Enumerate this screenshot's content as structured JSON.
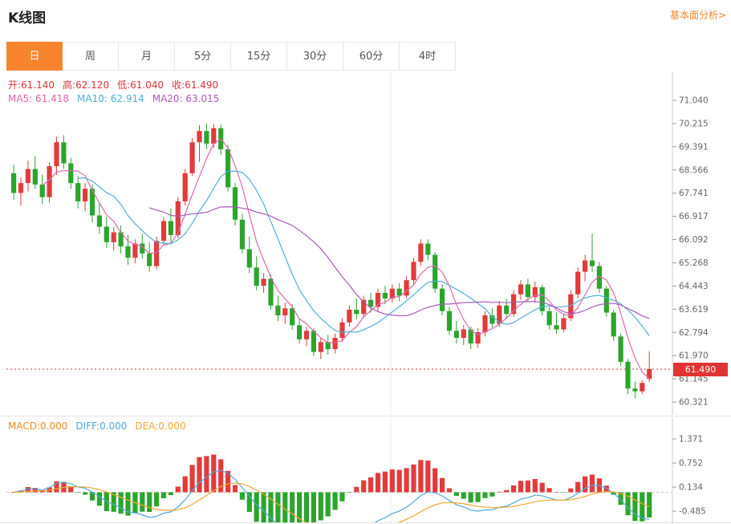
{
  "header": {
    "title": "K线图",
    "link_label": "基本面分析>"
  },
  "tabs": [
    {
      "name": "tab-day",
      "label": "日",
      "active": true
    },
    {
      "name": "tab-week",
      "label": "周",
      "active": false
    },
    {
      "name": "tab-month",
      "label": "月",
      "active": false
    },
    {
      "name": "tab-5min",
      "label": "5分",
      "active": false
    },
    {
      "name": "tab-15min",
      "label": "15分",
      "active": false
    },
    {
      "name": "tab-30min",
      "label": "30分",
      "active": false
    },
    {
      "name": "tab-60min",
      "label": "60分",
      "active": false
    },
    {
      "name": "tab-4hour",
      "label": "4时",
      "active": false
    }
  ],
  "ohlc_legend": [
    {
      "name": "legend-open",
      "label": "开:",
      "value": "61.140",
      "color": "#e03434"
    },
    {
      "name": "legend-high",
      "label": "高:",
      "value": "62.120",
      "color": "#e03434"
    },
    {
      "name": "legend-low",
      "label": "低:",
      "value": "61.040",
      "color": "#e03434"
    },
    {
      "name": "legend-close",
      "label": "收:",
      "value": "61.490",
      "color": "#e03434"
    }
  ],
  "ma_legend": [
    {
      "name": "legend-ma5",
      "label": "MA5: ",
      "value": "61.418",
      "color": "#e066b2"
    },
    {
      "name": "legend-ma10",
      "label": "MA10: ",
      "value": "62.914",
      "color": "#4fb0d8"
    },
    {
      "name": "legend-ma20",
      "label": "MA20: ",
      "value": "63.015",
      "color": "#a85cb8"
    }
  ],
  "macd_legend": [
    {
      "name": "legend-macd",
      "label": "MACD:",
      "value": "0.000",
      "color": "#f08c2e"
    },
    {
      "name": "legend-diff",
      "label": "DIFF:",
      "value": "0.000",
      "color": "#4fa8d8"
    },
    {
      "name": "legend-dea",
      "label": "DEA:",
      "value": "0.000",
      "color": "#f0a830"
    }
  ],
  "price_tag": {
    "value": "61.490",
    "bg": "#e03434"
  },
  "chart_data": {
    "type": "candlestick",
    "title": "K线图",
    "period": "日",
    "ohlc_current": {
      "open": 61.14,
      "high": 62.12,
      "low": 61.04,
      "close": 61.49
    },
    "ma_values": {
      "ma5": 61.418,
      "ma10": 62.914,
      "ma20": 63.015
    },
    "macd_display": {
      "macd": 0.0,
      "diff": 0.0,
      "dea": 0.0
    },
    "current_price": 61.49,
    "y_axis_labels": [
      "71.040",
      "70.215",
      "69.391",
      "68.566",
      "67.741",
      "66.917",
      "66.092",
      "65.268",
      "64.443",
      "63.619",
      "62.794",
      "61.970",
      "61.145",
      "60.321"
    ],
    "macd_axis_labels": [
      "1.371",
      "0.752",
      "0.134",
      "-0.485"
    ],
    "colors": {
      "up": "#e23b3b",
      "down": "#2ba52e",
      "ma5": "#e066b2",
      "ma10": "#4fb0d8",
      "ma20": "#a85cb8",
      "diff": "#4fa8d8",
      "dea": "#f0a830",
      "price_line": "#e03434",
      "axis": "#cccccc",
      "grid": "#ededed"
    },
    "candles": [
      [
        68.45,
        68.75,
        67.5,
        67.75
      ],
      [
        67.75,
        68.3,
        67.3,
        68.1
      ],
      [
        68.1,
        68.9,
        67.8,
        68.6
      ],
      [
        68.6,
        69.05,
        67.9,
        68.05
      ],
      [
        68.05,
        68.4,
        67.35,
        67.6
      ],
      [
        67.6,
        68.85,
        67.4,
        68.7
      ],
      [
        68.7,
        69.75,
        68.4,
        69.55
      ],
      [
        69.55,
        69.8,
        68.6,
        68.8
      ],
      [
        68.8,
        69.0,
        67.9,
        68.1
      ],
      [
        68.1,
        68.35,
        67.2,
        67.45
      ],
      [
        67.45,
        68.1,
        67.1,
        67.9
      ],
      [
        67.9,
        68.05,
        66.7,
        66.95
      ],
      [
        66.95,
        67.4,
        66.3,
        66.55
      ],
      [
        66.55,
        66.9,
        65.8,
        66.0
      ],
      [
        66.0,
        66.55,
        65.7,
        66.35
      ],
      [
        66.35,
        66.6,
        65.6,
        65.85
      ],
      [
        65.85,
        66.25,
        65.2,
        65.45
      ],
      [
        65.45,
        66.1,
        65.25,
        65.95
      ],
      [
        65.95,
        66.3,
        65.4,
        65.6
      ],
      [
        65.6,
        66.0,
        64.95,
        65.15
      ],
      [
        65.15,
        66.2,
        65.05,
        66.05
      ],
      [
        66.05,
        66.9,
        65.9,
        66.75
      ],
      [
        66.75,
        67.2,
        66.0,
        66.25
      ],
      [
        66.25,
        67.6,
        66.15,
        67.45
      ],
      [
        67.45,
        68.6,
        67.3,
        68.45
      ],
      [
        68.45,
        69.7,
        68.35,
        69.55
      ],
      [
        69.55,
        70.15,
        68.85,
        69.95
      ],
      [
        69.95,
        70.21,
        69.3,
        69.5
      ],
      [
        69.5,
        70.2,
        69.35,
        70.05
      ],
      [
        70.05,
        70.18,
        69.1,
        69.3
      ],
      [
        69.3,
        69.45,
        67.8,
        67.95
      ],
      [
        67.95,
        68.1,
        66.6,
        66.8
      ],
      [
        66.8,
        67.0,
        65.6,
        65.75
      ],
      [
        65.75,
        66.2,
        64.9,
        65.1
      ],
      [
        65.1,
        65.5,
        64.3,
        64.45
      ],
      [
        64.45,
        64.9,
        64.2,
        64.7
      ],
      [
        64.7,
        64.85,
        63.6,
        63.75
      ],
      [
        63.75,
        64.1,
        63.2,
        63.4
      ],
      [
        63.4,
        63.85,
        63.1,
        63.65
      ],
      [
        63.65,
        63.8,
        62.9,
        63.05
      ],
      [
        63.05,
        63.3,
        62.4,
        62.55
      ],
      [
        62.55,
        63.0,
        62.3,
        62.85
      ],
      [
        62.85,
        62.95,
        61.95,
        62.1
      ],
      [
        62.1,
        62.6,
        61.85,
        62.45
      ],
      [
        62.45,
        62.7,
        62.0,
        62.2
      ],
      [
        62.2,
        62.75,
        62.05,
        62.6
      ],
      [
        62.6,
        63.3,
        62.45,
        63.15
      ],
      [
        63.15,
        63.75,
        63.0,
        63.6
      ],
      [
        63.6,
        64.0,
        63.25,
        63.45
      ],
      [
        63.45,
        64.1,
        63.3,
        63.95
      ],
      [
        63.95,
        64.2,
        63.5,
        63.7
      ],
      [
        63.7,
        64.35,
        63.55,
        64.2
      ],
      [
        64.2,
        64.45,
        63.8,
        64.0
      ],
      [
        64.0,
        64.5,
        63.85,
        64.35
      ],
      [
        64.35,
        64.55,
        63.9,
        64.1
      ],
      [
        64.1,
        64.8,
        64.0,
        64.65
      ],
      [
        64.65,
        65.45,
        64.5,
        65.3
      ],
      [
        65.3,
        66.1,
        65.15,
        65.95
      ],
      [
        65.95,
        66.1,
        65.35,
        65.55
      ],
      [
        65.55,
        65.65,
        64.2,
        64.35
      ],
      [
        64.35,
        64.5,
        63.4,
        63.55
      ],
      [
        63.55,
        63.7,
        62.7,
        62.85
      ],
      [
        62.85,
        63.2,
        62.4,
        62.6
      ],
      [
        62.6,
        63.05,
        62.35,
        62.9
      ],
      [
        62.9,
        63.0,
        62.2,
        62.4
      ],
      [
        62.4,
        62.95,
        62.25,
        62.8
      ],
      [
        62.8,
        63.55,
        62.65,
        63.4
      ],
      [
        63.4,
        63.65,
        62.95,
        63.1
      ],
      [
        63.1,
        63.9,
        63.0,
        63.75
      ],
      [
        63.75,
        64.0,
        63.3,
        63.45
      ],
      [
        63.45,
        64.3,
        63.35,
        64.15
      ],
      [
        64.15,
        64.65,
        63.95,
        64.5
      ],
      [
        64.5,
        64.7,
        63.9,
        64.05
      ],
      [
        64.05,
        64.6,
        63.85,
        64.4
      ],
      [
        64.4,
        64.5,
        63.4,
        63.55
      ],
      [
        63.55,
        63.7,
        62.9,
        63.05
      ],
      [
        63.05,
        63.5,
        62.75,
        62.9
      ],
      [
        62.9,
        63.45,
        62.8,
        63.3
      ],
      [
        63.3,
        64.3,
        63.2,
        64.15
      ],
      [
        64.15,
        65.1,
        64.0,
        64.95
      ],
      [
        64.95,
        65.55,
        64.6,
        65.35
      ],
      [
        65.35,
        66.3,
        64.95,
        65.15
      ],
      [
        65.15,
        65.3,
        64.2,
        64.35
      ],
      [
        64.35,
        64.45,
        63.35,
        63.5
      ],
      [
        63.5,
        63.6,
        62.5,
        62.65
      ],
      [
        62.65,
        62.75,
        61.6,
        61.75
      ],
      [
        61.75,
        61.85,
        60.6,
        60.8
      ],
      [
        60.8,
        61.05,
        60.45,
        60.7
      ],
      [
        60.7,
        61.1,
        60.6,
        61.0
      ],
      [
        61.14,
        62.12,
        61.04,
        61.49
      ]
    ]
  }
}
